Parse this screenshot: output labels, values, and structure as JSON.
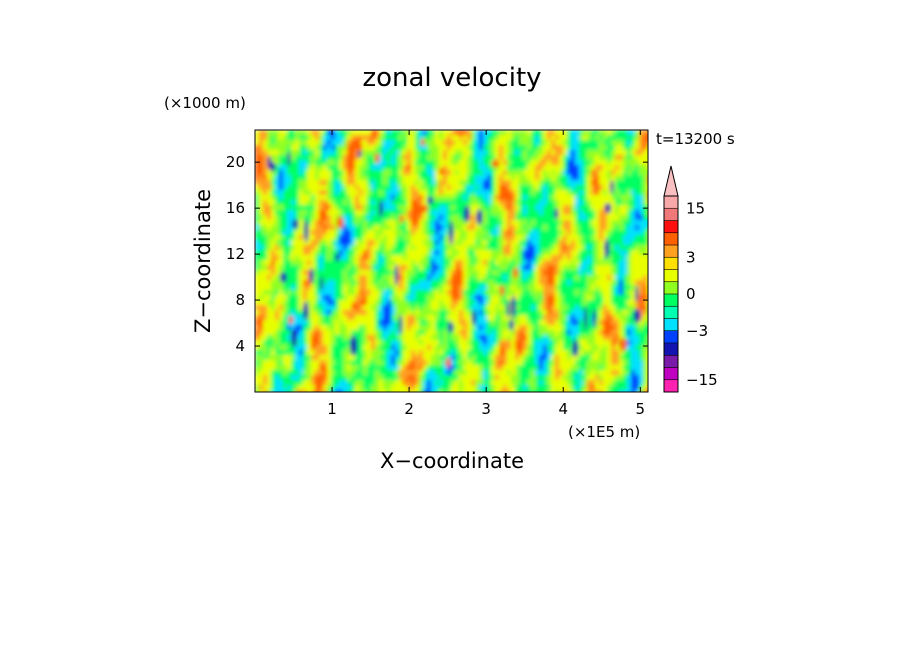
{
  "chart_data": {
    "type": "heatmap",
    "title": "zonal velocity",
    "xlabel": "X−coordinate",
    "ylabel": "Z−coordinate",
    "x_unit": "(×1E5 m)",
    "y_unit": "(×1000 m)",
    "time_label": "t=13200 s",
    "xlim": [
      0,
      5.1
    ],
    "ylim": [
      0,
      22.8
    ],
    "x_ticks": [
      {
        "value": 1,
        "label": "1"
      },
      {
        "value": 2,
        "label": "2"
      },
      {
        "value": 3,
        "label": "3"
      },
      {
        "value": 4,
        "label": "4"
      },
      {
        "value": 5,
        "label": "5"
      }
    ],
    "y_ticks": [
      {
        "value": 4,
        "label": "4"
      },
      {
        "value": 8,
        "label": "8"
      },
      {
        "value": 12,
        "label": "12"
      },
      {
        "value": 16,
        "label": "16"
      },
      {
        "value": 20,
        "label": "20"
      }
    ],
    "colorbar": {
      "levels": [
        -18,
        -15,
        -12,
        -9,
        -6,
        -3,
        -2,
        -1,
        0,
        1,
        2,
        3,
        6,
        9,
        12,
        15,
        18
      ],
      "colors": [
        "#ff22b0",
        "#c000c0",
        "#7a1aa8",
        "#1414b0",
        "#0040ff",
        "#00e0ff",
        "#00ffb0",
        "#00ff60",
        "#90ff20",
        "#e8ff00",
        "#ffe000",
        "#ffa020",
        "#ff6000",
        "#ff1010",
        "#f07878",
        "#f8a8a8"
      ],
      "extend_max_color": "#f8c0c0",
      "tick_labels": [
        {
          "value": 15,
          "label": "15"
        },
        {
          "value": 3,
          "label": "3"
        },
        {
          "value": 0,
          "label": "0"
        },
        {
          "value": -3,
          "label": "−3"
        },
        {
          "value": -15,
          "label": "−15"
        }
      ]
    },
    "field_colors": {
      "strong_negative": "#1414b0",
      "negative": "#0040ff",
      "weak_negative": "#00e0ff",
      "near_zero": "#00ff60",
      "weak_positive": "#90ff20",
      "positive": "#e8ff00",
      "strong_positive": "#ffa020",
      "peak_positive": "#ff6000"
    }
  }
}
